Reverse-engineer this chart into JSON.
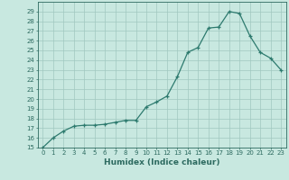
{
  "x": [
    0,
    1,
    2,
    3,
    4,
    5,
    6,
    7,
    8,
    9,
    10,
    11,
    12,
    13,
    14,
    15,
    16,
    17,
    18,
    19,
    20,
    21,
    22,
    23
  ],
  "y": [
    15,
    16,
    16.7,
    17.2,
    17.3,
    17.3,
    17.4,
    17.6,
    17.8,
    17.8,
    19.2,
    19.7,
    20.3,
    22.3,
    24.8,
    25.3,
    27.3,
    27.4,
    29.0,
    28.8,
    26.5,
    24.8,
    24.2,
    23.0
  ],
  "line_color": "#2d7a6e",
  "marker": "+",
  "bg_color": "#c8e8e0",
  "grid_color": "#a0c8c0",
  "text_color": "#2d6a60",
  "xlabel": "Humidex (Indice chaleur)",
  "ylim": [
    15,
    30
  ],
  "xlim": [
    -0.5,
    23.5
  ],
  "yticks": [
    15,
    16,
    17,
    18,
    19,
    20,
    21,
    22,
    23,
    24,
    25,
    26,
    27,
    28,
    29
  ],
  "xticks": [
    0,
    1,
    2,
    3,
    4,
    5,
    6,
    7,
    8,
    9,
    10,
    11,
    12,
    13,
    14,
    15,
    16,
    17,
    18,
    19,
    20,
    21,
    22,
    23
  ],
  "tick_fontsize": 5.0,
  "xlabel_fontsize": 6.5
}
